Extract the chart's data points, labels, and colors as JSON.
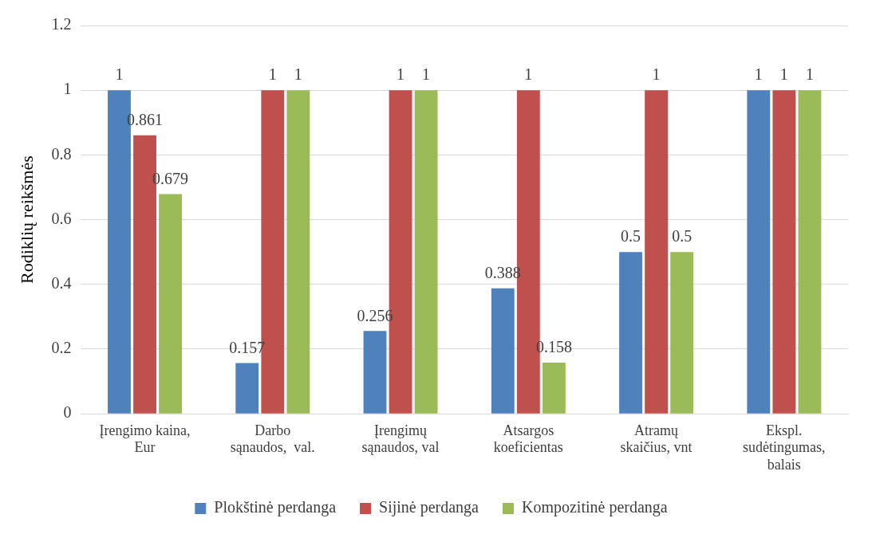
{
  "chart_data": {
    "type": "bar",
    "ylabel": "Rodiklių reikšmės",
    "categories": [
      "Įrengimo kaina,\nEur",
      "Darbo\nsąnaudos,  val.",
      "Įrengimų\nsąnaudos, val",
      "Atsargos\nkoeficientas",
      "Atramų\nskaičius, vnt",
      "Ekspl.\nsudėtingumas,\nbalais"
    ],
    "series": [
      {
        "name": "Plokštinė perdanga",
        "color": "#4f81bd",
        "values": [
          1,
          0.157,
          0.256,
          0.388,
          0.5,
          1
        ]
      },
      {
        "name": "Sijinė perdanga",
        "color": "#c0504d",
        "values": [
          0.861,
          1,
          1,
          1,
          1,
          1
        ]
      },
      {
        "name": "Kompozitinė perdanga",
        "color": "#9bbb59",
        "values": [
          0.679,
          1,
          1,
          0.158,
          0.5,
          1
        ]
      }
    ],
    "ylim": [
      0,
      1.2
    ],
    "yticks": [
      0,
      0.2,
      0.4,
      0.6,
      0.8,
      1,
      1.2
    ],
    "grid": "y",
    "legend": "bottom",
    "data_labels": true
  }
}
